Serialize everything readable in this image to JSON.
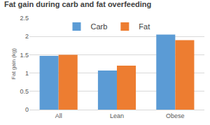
{
  "chart_data": {
    "type": "bar",
    "title": "Fat gain during carb and fat overfeeding",
    "y_label": "Fat gain (kg)",
    "categories": [
      "All",
      "Lean",
      "Obese"
    ],
    "series": [
      {
        "name": "Carb",
        "color": "#5b9bd5",
        "values": [
          1.47,
          1.07,
          2.05
        ]
      },
      {
        "name": "Fat",
        "color": "#ed7d31",
        "values": [
          1.5,
          1.2,
          1.9
        ]
      }
    ],
    "ylim": [
      0,
      2.5
    ],
    "yticks": [
      0,
      0.5,
      1,
      1.5,
      2,
      2.5
    ],
    "grid": true,
    "legend": "top"
  }
}
